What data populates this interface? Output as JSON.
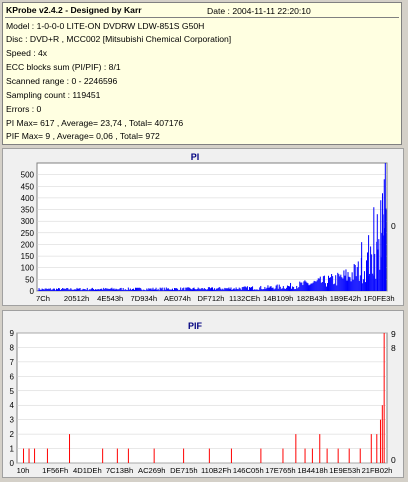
{
  "info": {
    "title": "KProbe v2.4.2 - Designed by Karr",
    "date": "Date : 2004-11-11 22:20:10",
    "lines": [
      "Model : 1-0-0-0 LITE-ON DVDRW LDW-851S   G50H",
      "Disc : DVD+R , MCC002 [Mitsubishi Chemical Corporation]",
      "Speed : 4x",
      "ECC blocks sum (PI/PIF) : 8/1",
      "Scanned range : 0 - 2246596",
      "Sampling count : 119451",
      "Errors : 0",
      "PI Max= 617 , Average= 23,74 , Total= 407176",
      "PIF Max= 9 , Average= 0,06 , Total= 972"
    ]
  },
  "colors": {
    "pi": "#0000ff",
    "pif": "#ff0000",
    "grid": "#d0d0d0",
    "title": "#000080"
  },
  "chart_data": [
    {
      "type": "bar",
      "title": "PI",
      "ylim": [
        0,
        550
      ],
      "yticks": [
        0,
        50,
        100,
        150,
        200,
        250,
        300,
        350,
        400,
        450,
        500
      ],
      "right_label": "0",
      "xticks": [
        "7Ch",
        "20512h",
        "4E543h",
        "7D934h",
        "AE074h",
        "DF712h",
        "1132CEh",
        "14B109h",
        "182B43h",
        "1B9E42h",
        "1F0FE3h"
      ],
      "profile": [
        [
          0,
          8
        ],
        [
          0.5,
          10
        ],
        [
          0.65,
          14
        ],
        [
          0.72,
          20
        ],
        [
          0.8,
          35
        ],
        [
          0.86,
          50
        ],
        [
          0.9,
          70
        ],
        [
          0.94,
          100
        ],
        [
          0.97,
          140
        ],
        [
          0.99,
          200
        ],
        [
          1.0,
          260
        ]
      ],
      "spikes": [
        [
          0.965,
          360
        ],
        [
          0.975,
          330
        ],
        [
          0.985,
          390
        ],
        [
          0.99,
          420
        ],
        [
          0.995,
          480
        ],
        [
          0.998,
          617
        ],
        [
          0.93,
          210
        ],
        [
          0.95,
          240
        ]
      ]
    },
    {
      "type": "bar",
      "title": "PIF",
      "ylim": [
        0,
        9
      ],
      "yticks": [
        0,
        1,
        2,
        3,
        4,
        5,
        6,
        7,
        8,
        9
      ],
      "right_labels": [
        "9",
        "8",
        "0"
      ],
      "xticks": [
        "10h",
        "1F56Fh",
        "4D1DEh",
        "7C13Bh",
        "AC269h",
        "DE715h",
        "110B2Fh",
        "146C05h",
        "17E765h",
        "1B4418h",
        "1E9E53h",
        "21FB02h"
      ],
      "bars": [
        [
          0.015,
          1
        ],
        [
          0.03,
          1
        ],
        [
          0.045,
          1
        ],
        [
          0.08,
          1
        ],
        [
          0.14,
          2
        ],
        [
          0.23,
          1
        ],
        [
          0.27,
          1
        ],
        [
          0.3,
          1
        ],
        [
          0.37,
          1
        ],
        [
          0.45,
          1
        ],
        [
          0.52,
          1
        ],
        [
          0.58,
          1
        ],
        [
          0.66,
          1
        ],
        [
          0.72,
          1
        ],
        [
          0.755,
          2
        ],
        [
          0.78,
          1
        ],
        [
          0.8,
          1
        ],
        [
          0.82,
          2
        ],
        [
          0.84,
          1
        ],
        [
          0.87,
          1
        ],
        [
          0.9,
          1
        ],
        [
          0.93,
          1
        ],
        [
          0.96,
          2
        ],
        [
          0.975,
          2
        ],
        [
          0.985,
          3
        ],
        [
          0.99,
          4
        ],
        [
          0.995,
          9
        ]
      ]
    }
  ]
}
